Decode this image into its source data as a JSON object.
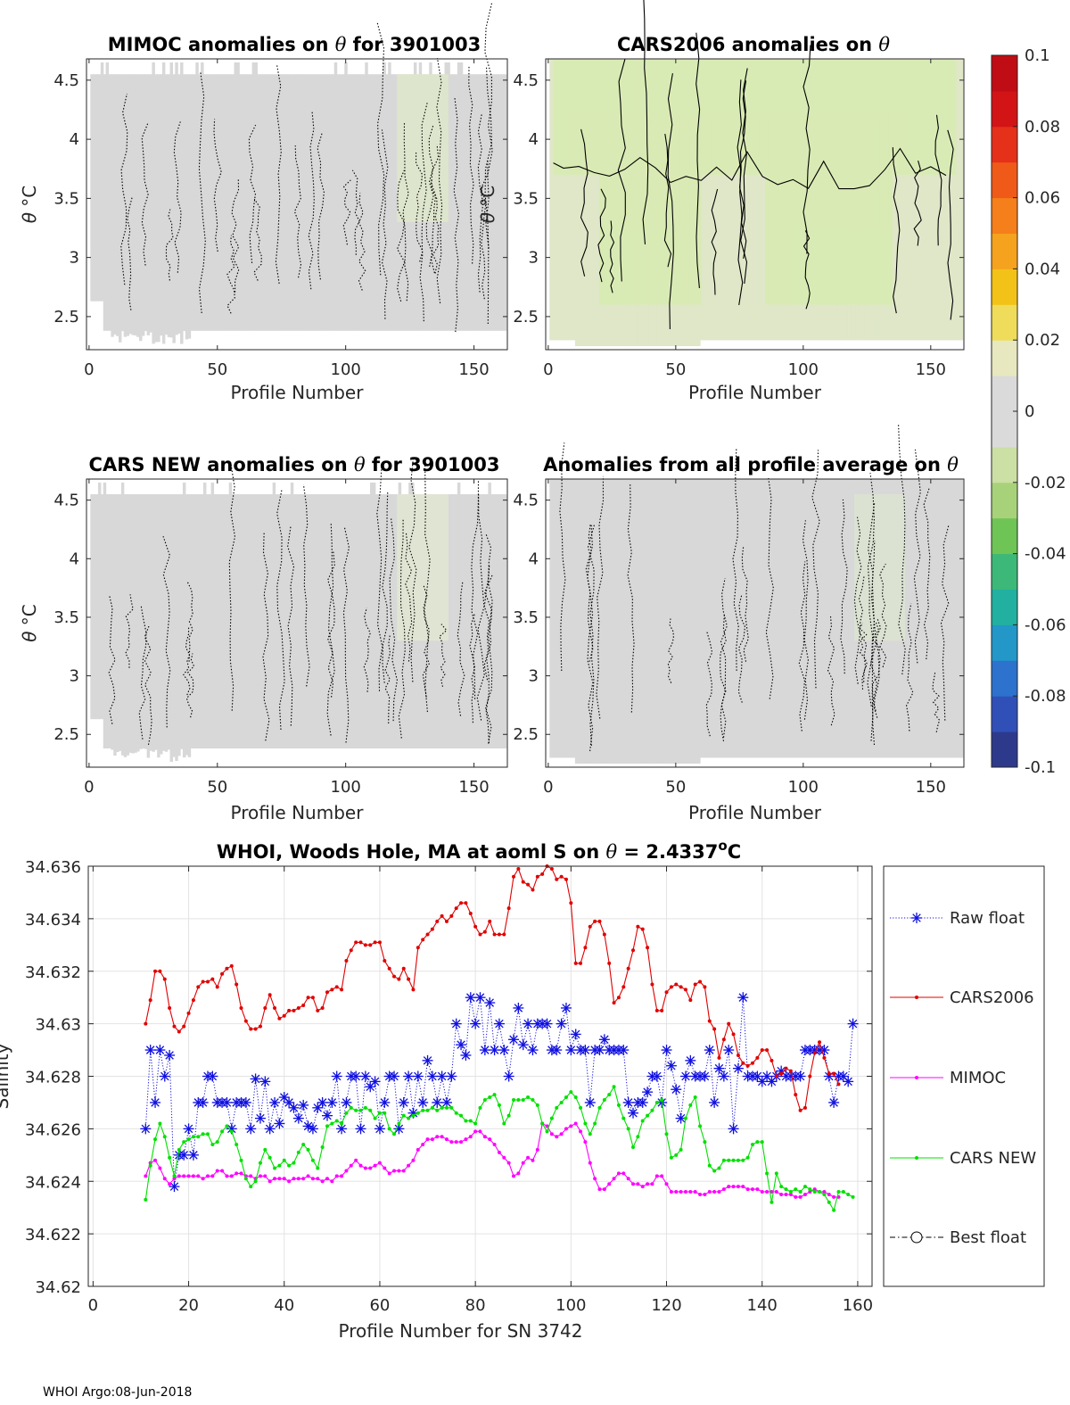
{
  "chart_data": [
    {
      "type": "heatmap",
      "id": "mimoc",
      "title_bold": "MIMOC anomalies on",
      "title_theta": "θ",
      "title_suffix": "for 3901003",
      "xlabel": "Profile Number",
      "ylabel_theta": "θ",
      "ylabel_unit": "°C",
      "xlim": [
        -1,
        163
      ],
      "ylim": [
        2.22,
        4.68
      ],
      "xticks": [
        0,
        50,
        100,
        150
      ],
      "yticks": [
        2.5,
        3,
        3.5,
        4,
        4.5
      ],
      "field_color": "#d8d8d8",
      "tint": "#e2ecc8",
      "contour_style": "dotted"
    },
    {
      "type": "heatmap",
      "id": "cars2006",
      "title_bold": "CARS2006 anomalies on",
      "title_theta": "θ",
      "title_suffix": "",
      "xlabel": "Profile Number",
      "ylabel_theta": "θ",
      "ylabel_unit": "°C",
      "xlim": [
        -1,
        163
      ],
      "ylim": [
        2.22,
        4.68
      ],
      "xticks": [
        0,
        50,
        100,
        150
      ],
      "yticks": [
        2.5,
        3,
        3.5,
        4,
        4.5
      ],
      "field_color": "#dfe7c8",
      "tint": "#d6ecaa",
      "contour_style": "solid"
    },
    {
      "type": "heatmap",
      "id": "carsnew",
      "title_bold": "CARS NEW anomalies on",
      "title_theta": "θ",
      "title_suffix": "for 3901003",
      "xlabel": "Profile Number",
      "ylabel_theta": "θ",
      "ylabel_unit": "°C",
      "xlim": [
        -1,
        163
      ],
      "ylim": [
        2.22,
        4.68
      ],
      "xticks": [
        0,
        50,
        100,
        150
      ],
      "yticks": [
        2.5,
        3,
        3.5,
        4,
        4.5
      ],
      "field_color": "#d8d8d8",
      "tint": "#e4ecd0",
      "contour_style": "dotted"
    },
    {
      "type": "heatmap",
      "id": "profileavg",
      "title_bold": "Anomalies from all profile average on",
      "title_theta": "θ",
      "title_suffix": "",
      "xlabel": "Profile Number",
      "ylabel_theta": "",
      "ylabel_unit": "",
      "xlim": [
        -1,
        163
      ],
      "ylim": [
        2.22,
        4.68
      ],
      "xticks": [
        0,
        50,
        100,
        150
      ],
      "yticks": [
        2.5,
        3,
        3.5,
        4,
        4.5
      ],
      "field_color": "#d8d8d8",
      "tint": "#dde8d0",
      "contour_style": "dotted"
    },
    {
      "type": "colorbar",
      "id": "colorbar",
      "range": [
        -0.1,
        0.1
      ],
      "ticks": [
        "0.1",
        "0.08",
        "0.06",
        "0.04",
        "0.02",
        "0",
        "-0.02",
        "-0.04",
        "-0.06",
        "-0.08",
        "-0.1"
      ],
      "tick_values": [
        0.1,
        0.08,
        0.06,
        0.04,
        0.02,
        0,
        -0.02,
        -0.04,
        -0.06,
        -0.08,
        -0.1
      ],
      "colors": [
        "#2d3a8c",
        "#3050b8",
        "#2d72cc",
        "#2297c8",
        "#22b0a0",
        "#3cb878",
        "#6ec455",
        "#a8d27a",
        "#ccdfa4",
        "#dadada",
        "#dadada",
        "#e8e8c0",
        "#eedc5a",
        "#f2c218",
        "#f5a21e",
        "#f57f1a",
        "#f05a18",
        "#e5301a",
        "#d21416",
        "#c00c14"
      ]
    },
    {
      "type": "line",
      "id": "salinity",
      "title_prefix": "WHOI, Woods Hole, MA at aoml S on",
      "title_theta": "θ",
      "title_eq": "= 2.4337",
      "title_deg": "o",
      "title_unit": "C",
      "xlabel": "Profile Number for SN 3742",
      "ylabel": "Salinity",
      "xlim": [
        -1,
        163
      ],
      "ylim": [
        34.62,
        34.636
      ],
      "xticks": [
        0,
        20,
        40,
        60,
        80,
        100,
        120,
        140,
        160
      ],
      "yticks": [
        "34.62",
        "34.622",
        "34.624",
        "34.626",
        "34.628",
        "34.63",
        "34.632",
        "34.634",
        "34.636"
      ],
      "ytick_values": [
        34.62,
        34.622,
        34.624,
        34.626,
        34.628,
        34.63,
        34.632,
        34.634,
        34.636
      ],
      "grid": true,
      "legend_position": "outside-right",
      "x_start": 11,
      "series": [
        {
          "name": "Raw float",
          "color": "#1010e0",
          "style": "dotted-star",
          "values": [
            34.626,
            34.629,
            34.627,
            34.629,
            34.628,
            34.6288,
            34.6238,
            34.625,
            34.625,
            34.626,
            34.625,
            34.627,
            34.627,
            34.628,
            34.628,
            34.627,
            34.627,
            34.627,
            34.626,
            34.627,
            34.627,
            34.627,
            34.626,
            34.6279,
            34.6264,
            34.6278,
            34.626,
            34.627,
            34.6262,
            34.6272,
            34.627,
            34.6268,
            34.6264,
            34.6269,
            34.6261,
            34.626,
            34.6268,
            34.627,
            34.6265,
            34.627,
            34.628,
            34.626,
            34.627,
            34.628,
            34.628,
            34.626,
            34.628,
            34.6276,
            34.6278,
            34.626,
            34.627,
            34.628,
            34.628,
            34.626,
            34.627,
            34.628,
            34.6266,
            34.628,
            34.627,
            34.6286,
            34.628,
            34.627,
            34.628,
            34.627,
            34.628,
            34.63,
            34.6292,
            34.6288,
            34.631,
            34.63,
            34.631,
            34.629,
            34.6308,
            34.629,
            34.63,
            34.629,
            34.628,
            34.6294,
            34.6306,
            34.6292,
            34.63,
            34.629,
            34.63,
            34.63,
            34.63,
            34.629,
            34.629,
            34.63,
            34.6306,
            34.629,
            34.6296,
            34.629,
            34.629,
            34.627,
            34.629,
            34.629,
            34.6294,
            34.629,
            34.629,
            34.629,
            34.629,
            34.627,
            34.6266,
            34.627,
            34.627,
            34.6274,
            34.628,
            34.628,
            34.627,
            34.629,
            34.6284,
            34.6275,
            34.6264,
            34.628,
            34.6286,
            34.628,
            34.628,
            34.628,
            34.629,
            34.627,
            34.6283,
            34.628,
            34.629,
            34.626,
            34.6283,
            34.631,
            34.628,
            34.628,
            34.628,
            34.6278,
            34.628,
            34.6278,
            34.628,
            34.6282,
            34.628,
            34.628,
            34.628,
            34.628,
            34.629,
            34.629,
            34.629,
            34.629,
            34.629,
            34.628,
            34.627,
            34.628,
            34.628,
            34.6278,
            34.63
          ]
        },
        {
          "name": "CARS2006",
          "color": "#e00000",
          "style": "solid-dot",
          "values": [
            34.63,
            34.6309,
            34.632,
            34.632,
            34.6317,
            34.6306,
            34.6299,
            34.6297,
            34.6299,
            34.6304,
            34.6309,
            34.6314,
            34.6316,
            34.6316,
            34.6317,
            34.6314,
            34.6319,
            34.6321,
            34.6322,
            34.6315,
            34.6306,
            34.6301,
            34.6298,
            34.6298,
            34.6299,
            34.6306,
            34.6311,
            34.6306,
            34.6302,
            34.6303,
            34.6305,
            34.6305,
            34.6306,
            34.6307,
            34.631,
            34.631,
            34.6305,
            34.6306,
            34.6312,
            34.6313,
            34.6314,
            34.6313,
            34.6324,
            34.6328,
            34.6331,
            34.6331,
            34.633,
            34.633,
            34.6331,
            34.6331,
            34.6324,
            34.6321,
            34.6318,
            34.6317,
            34.6321,
            34.6317,
            34.6313,
            34.6329,
            34.6332,
            34.6334,
            34.6336,
            34.6339,
            34.6341,
            34.6339,
            34.6341,
            34.6344,
            34.6346,
            34.6346,
            34.6342,
            34.6337,
            34.6334,
            34.6335,
            34.6339,
            34.6334,
            34.6334,
            34.6334,
            34.6344,
            34.6356,
            34.6359,
            34.6354,
            34.6353,
            34.6351,
            34.6356,
            34.6357,
            34.636,
            34.6359,
            34.6355,
            34.6356,
            34.6355,
            34.6346,
            34.6323,
            34.6323,
            34.6329,
            34.6337,
            34.6339,
            34.6339,
            34.6334,
            34.6323,
            34.6308,
            34.631,
            34.6314,
            34.6321,
            34.6328,
            34.6337,
            34.6336,
            34.6329,
            34.6315,
            34.6305,
            34.6305,
            34.6312,
            34.6314,
            34.6315,
            34.6314,
            34.6313,
            34.6309,
            34.6315,
            34.6316,
            34.6314,
            34.6301,
            34.6298,
            34.6287,
            34.6294,
            34.63,
            34.6296,
            34.6288,
            34.6285,
            34.6284,
            34.6285,
            34.6287,
            34.629,
            34.629,
            34.6286,
            34.628,
            34.6281,
            34.6283,
            34.6282,
            34.6273,
            34.6267,
            34.6268,
            34.628,
            34.6289,
            34.6293,
            34.6287,
            34.6281,
            34.6281,
            34.6277
          ]
        },
        {
          "name": "MIMOC",
          "color": "#ff00ff",
          "style": "solid-dot",
          "values": [
            34.6242,
            34.6247,
            34.6248,
            34.6245,
            34.6241,
            34.6239,
            34.6241,
            34.6242,
            34.6242,
            34.6242,
            34.6242,
            34.6242,
            34.6241,
            34.6242,
            34.6242,
            34.6244,
            34.6244,
            34.6242,
            34.6242,
            34.6243,
            34.6243,
            34.6242,
            34.6242,
            34.6241,
            34.6242,
            34.6242,
            34.624,
            34.6241,
            34.6241,
            34.6241,
            34.624,
            34.6241,
            34.6241,
            34.6241,
            34.6242,
            34.6241,
            34.6241,
            34.624,
            34.6241,
            34.624,
            34.6242,
            34.6242,
            34.6244,
            34.6246,
            34.6248,
            34.6246,
            34.6245,
            34.6245,
            34.6246,
            34.6247,
            34.6245,
            34.6243,
            34.6244,
            34.6244,
            34.6244,
            34.6246,
            34.6248,
            34.6252,
            34.6254,
            34.6256,
            34.6256,
            34.6257,
            34.6257,
            34.6256,
            34.6255,
            34.6255,
            34.6255,
            34.6256,
            34.6257,
            34.6259,
            34.6259,
            34.6257,
            34.6256,
            34.6254,
            34.6251,
            34.6249,
            34.6247,
            34.6242,
            34.6243,
            34.6247,
            34.6249,
            34.6248,
            34.6252,
            34.6262,
            34.6261,
            34.6258,
            34.6257,
            34.6258,
            34.626,
            34.6261,
            34.6262,
            34.6259,
            34.6255,
            34.6247,
            34.6241,
            34.6237,
            34.6237,
            34.6239,
            34.6241,
            34.6243,
            34.6243,
            34.6241,
            34.6239,
            34.6239,
            34.6238,
            34.6239,
            34.6239,
            34.6242,
            34.6242,
            34.6239,
            34.6236,
            34.6236,
            34.6236,
            34.6236,
            34.6236,
            34.6236,
            34.6235,
            34.6235,
            34.6236,
            34.6236,
            34.6236,
            34.6237,
            34.6238,
            34.6238,
            34.6238,
            34.6238,
            34.6237,
            34.6237,
            34.6237,
            34.6236,
            34.6236,
            34.6236,
            34.6236,
            34.6235,
            34.6235,
            34.6235,
            34.6234,
            34.6234,
            34.6235,
            34.6236,
            34.6237,
            34.6236,
            34.6236,
            34.6235,
            34.6234,
            34.6234
          ]
        },
        {
          "name": "CARS NEW",
          "color": "#00e000",
          "style": "solid-dot",
          "values": [
            34.6233,
            34.6246,
            34.6256,
            34.6262,
            34.6257,
            34.6249,
            34.6242,
            34.6252,
            34.6255,
            34.6256,
            34.6257,
            34.6257,
            34.6258,
            34.6258,
            34.6254,
            34.6255,
            34.6259,
            34.6261,
            34.6259,
            34.6254,
            34.6248,
            34.6241,
            34.6238,
            34.624,
            34.6247,
            34.6252,
            34.6249,
            34.6245,
            34.6246,
            34.6248,
            34.6246,
            34.6247,
            34.6251,
            34.6254,
            34.6252,
            34.6248,
            34.6245,
            34.6253,
            34.6261,
            34.6262,
            34.6263,
            34.6262,
            34.6266,
            34.6268,
            34.6267,
            34.6267,
            34.6268,
            34.6267,
            34.6264,
            34.6266,
            34.6266,
            34.626,
            34.6258,
            34.6262,
            34.6265,
            34.6264,
            34.6265,
            34.6266,
            34.6267,
            34.6267,
            34.6268,
            34.6267,
            34.6268,
            34.6268,
            34.6268,
            34.6266,
            34.6265,
            34.6263,
            34.6263,
            34.6262,
            34.6268,
            34.6271,
            34.6272,
            34.6273,
            34.6269,
            34.6262,
            34.6265,
            34.6271,
            34.6271,
            34.6271,
            34.6272,
            34.6271,
            34.6269,
            34.6262,
            34.6259,
            34.6264,
            34.6268,
            34.627,
            34.6272,
            34.6274,
            34.6272,
            34.6268,
            34.6262,
            34.6258,
            34.6262,
            34.6268,
            34.6271,
            34.6273,
            34.6276,
            34.6269,
            34.6264,
            34.626,
            34.6253,
            34.6257,
            34.6263,
            34.6265,
            34.6267,
            34.627,
            34.6271,
            34.6258,
            34.6249,
            34.625,
            34.6252,
            34.6264,
            34.6269,
            34.6272,
            34.6261,
            34.6255,
            34.6246,
            34.6244,
            34.6245,
            34.6248,
            34.6248,
            34.6248,
            34.6248,
            34.6248,
            34.6249,
            34.6254,
            34.6255,
            34.6255,
            34.6243,
            34.6232,
            34.6243,
            34.6238,
            34.6237,
            34.6236,
            34.6237,
            34.6236,
            34.6238,
            34.6237,
            34.6236,
            34.6236,
            34.6235,
            34.6232,
            34.6229,
            34.6236,
            34.6236,
            34.6235,
            34.6234
          ]
        },
        {
          "name": "Best float",
          "color": "#000000",
          "style": "dashdot-circle",
          "values": []
        }
      ]
    }
  ],
  "footer": "WHOI Argo:08-Jun-2018"
}
